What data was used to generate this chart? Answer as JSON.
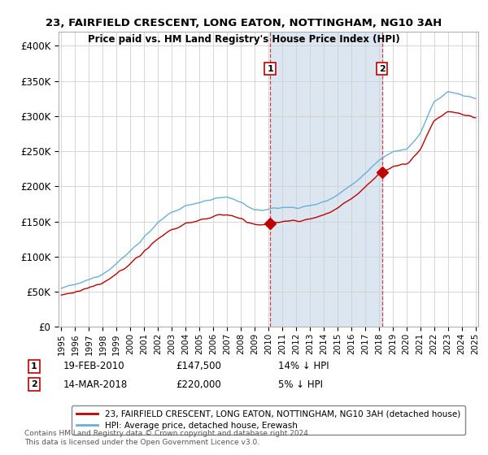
{
  "title": "23, FAIRFIELD CRESCENT, LONG EATON, NOTTINGHAM, NG10 3AH",
  "subtitle": "Price paid vs. HM Land Registry's House Price Index (HPI)",
  "ylim": [
    0,
    420000
  ],
  "yticks": [
    0,
    50000,
    100000,
    150000,
    200000,
    250000,
    300000,
    350000,
    400000
  ],
  "ytick_labels": [
    "£0",
    "£50K",
    "£100K",
    "£150K",
    "£200K",
    "£250K",
    "£300K",
    "£350K",
    "£400K"
  ],
  "hpi_color": "#6baed6",
  "price_color": "#c00000",
  "idx1": 181,
  "idx2": 278,
  "price1": 147500,
  "price2": 220000,
  "legend_line1": "23, FAIRFIELD CRESCENT, LONG EATON, NOTTINGHAM, NG10 3AH (detached house)",
  "legend_line2": "HPI: Average price, detached house, Erewash",
  "ann1_date": "19-FEB-2010",
  "ann1_price": "£147,500",
  "ann1_hpi": "14% ↓ HPI",
  "ann2_date": "14-MAR-2018",
  "ann2_price": "£220,000",
  "ann2_hpi": "5% ↓ HPI",
  "footer": "Contains HM Land Registry data © Crown copyright and database right 2024.\nThis data is licensed under the Open Government Licence v3.0.",
  "bg_color": "#ffffff",
  "grid_color": "#d0d0d0",
  "shaded_color": "#dce6f1"
}
